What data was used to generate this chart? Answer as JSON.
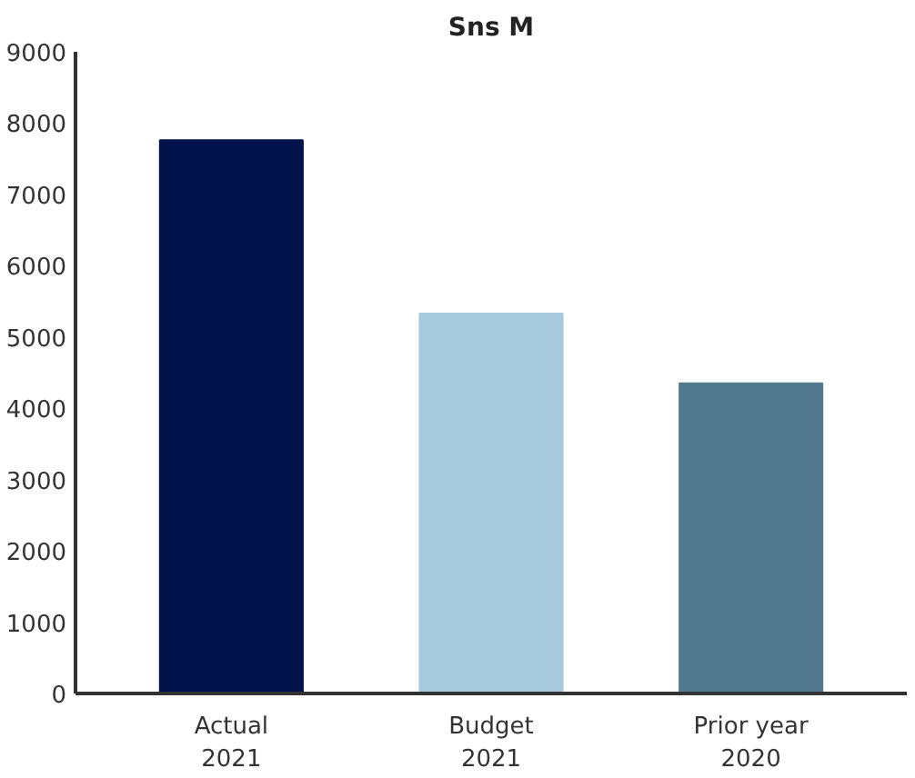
{
  "chart_data": {
    "type": "bar",
    "title": "Sns M",
    "categories": [
      "Actual\n2021",
      "Budget\n2021",
      "Prior year\n2020"
    ],
    "values": [
      7760,
      5330,
      4350
    ],
    "colors": [
      "#02134b",
      "#a6c9dd",
      "#52798d"
    ],
    "ylim": [
      0,
      9000
    ],
    "yticks": [
      0,
      1000,
      2000,
      3000,
      4000,
      5000,
      6000,
      7000,
      8000,
      9000
    ],
    "grid": false
  }
}
